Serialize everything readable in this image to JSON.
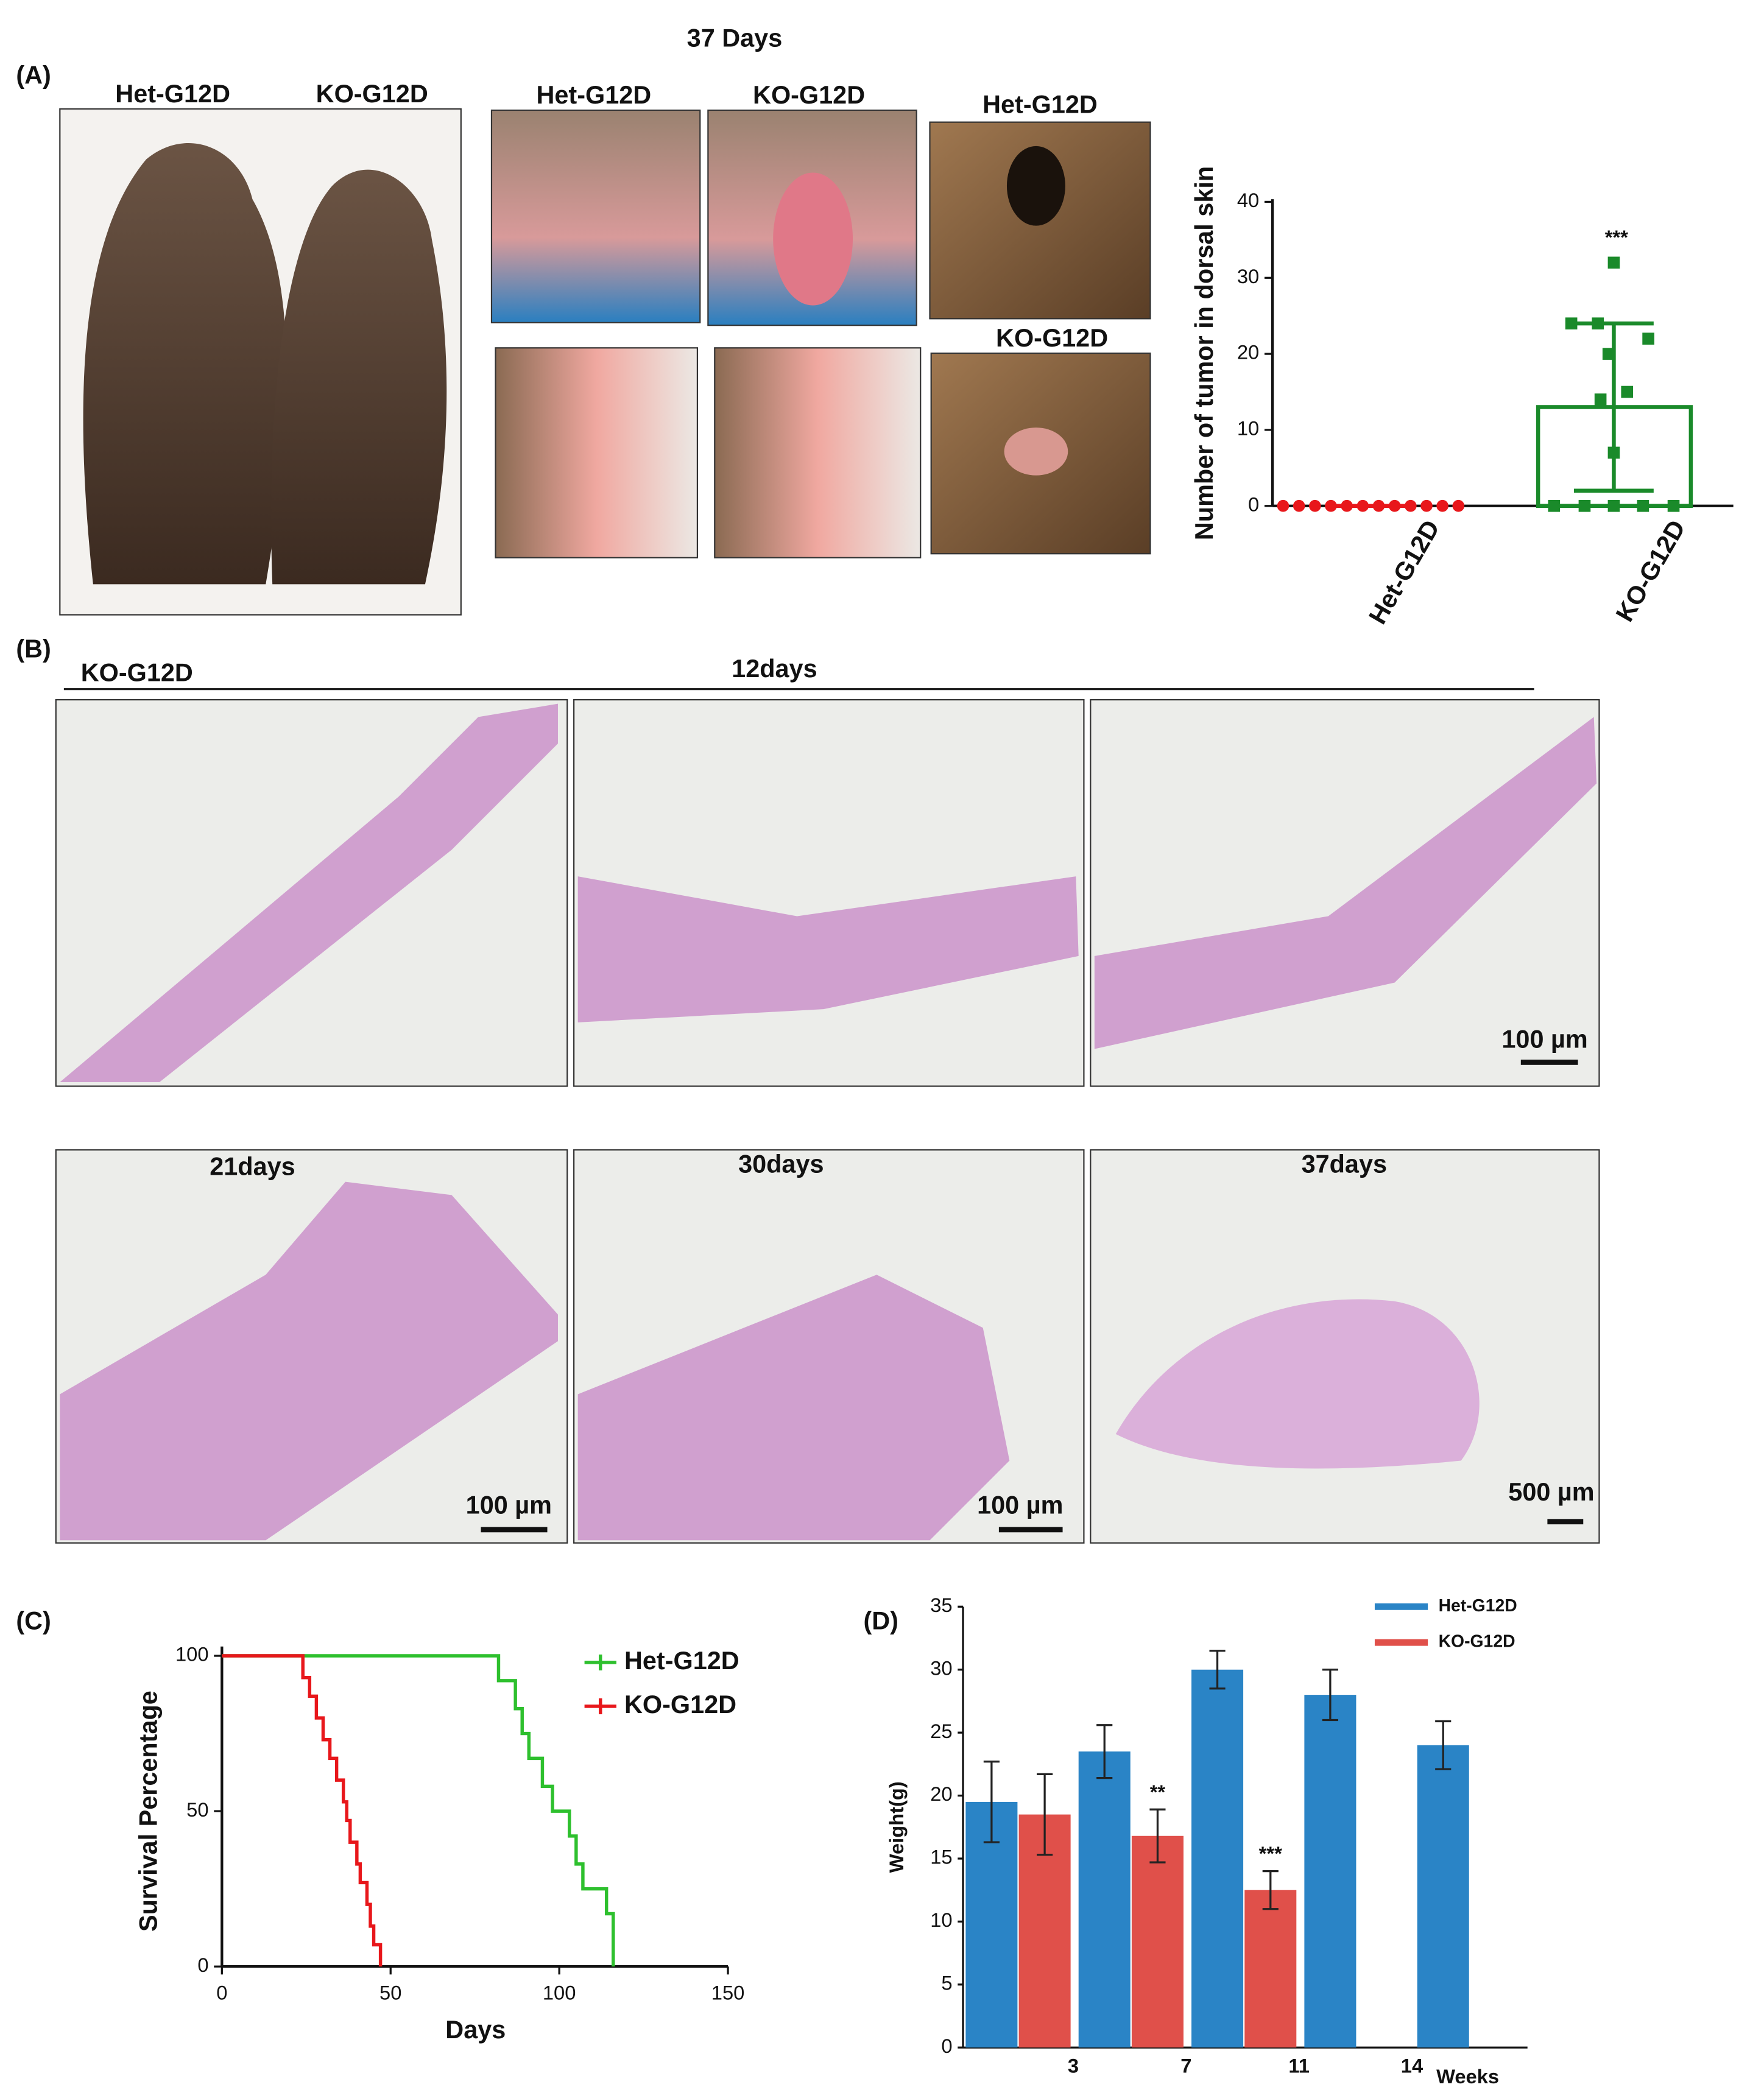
{
  "panel_labels": [
    "(A)",
    "(B)",
    "(C)",
    "(D)"
  ],
  "photos": {
    "title": "37 Days",
    "labels": [
      "Het-G12D",
      "KO-G12D",
      "Het-G12D",
      "KO-G12D",
      "Het-G12D",
      "KO-G12D"
    ]
  },
  "histology": {
    "group": "KO-G12D",
    "labels": [
      "12days",
      "21days",
      "30days",
      "37days"
    ],
    "scale_bars": [
      "100 µm",
      "100 µm",
      "100 µm",
      "500 µm"
    ]
  },
  "chart_data": [
    {
      "type": "bar_scatter",
      "y_label": "Number of tumor in dorsal skin",
      "categories": [
        "Het-G12D",
        "KO-G12D"
      ],
      "series": [
        {
          "name": "Het-G12D",
          "color": "#e8171b",
          "values": [
            0,
            0,
            0,
            0,
            0,
            0,
            0,
            0,
            0,
            0,
            0,
            0
          ]
        },
        {
          "name": "KO-G12D",
          "color": "#1a8a2a",
          "values": [
            32,
            24,
            24,
            22,
            20,
            15,
            14,
            7,
            0,
            0,
            0,
            0,
            0
          ]
        }
      ],
      "means": [
        0,
        13
      ],
      "errors": [
        0,
        11
      ],
      "annotation": "***",
      "ylim": [
        0,
        40
      ],
      "yticks": [
        0,
        10,
        20,
        30,
        40
      ]
    },
    {
      "type": "line",
      "x_label": "Days",
      "y_label": "Survival Percentage",
      "series": [
        {
          "name": "Het-G12D",
          "color": "#2ec02e",
          "x": [
            0,
            82,
            87,
            89,
            91,
            95,
            98,
            103,
            105,
            107,
            114,
            116
          ],
          "values": [
            100,
            92,
            83,
            75,
            67,
            58,
            50,
            42,
            33,
            25,
            17,
            0
          ]
        },
        {
          "name": "KO-G12D",
          "color": "#e8171b",
          "x": [
            0,
            24,
            26,
            28,
            30,
            32,
            34,
            36,
            37,
            38,
            40,
            41,
            43,
            44,
            45,
            47
          ],
          "values": [
            100,
            93,
            87,
            80,
            73,
            67,
            60,
            53,
            47,
            40,
            33,
            27,
            20,
            13,
            7,
            0
          ]
        }
      ],
      "xlim": [
        0,
        150
      ],
      "xticks": [
        0,
        50,
        100,
        150
      ],
      "ylim": [
        0,
        100
      ],
      "yticks": [
        0,
        50,
        100
      ]
    },
    {
      "type": "bar",
      "x_label": "Weeks",
      "y_label": "Weight(g)",
      "categories": [
        null,
        "3",
        "7",
        "11",
        "14"
      ],
      "series": [
        {
          "name": "Het-G12D",
          "color": "#2a84c6",
          "values": [
            19.5,
            23.5,
            30,
            28,
            24
          ],
          "errors": [
            3.2,
            2.1,
            1.5,
            2,
            1.9
          ]
        },
        {
          "name": "KO-G12D",
          "color": "#e0504a",
          "values": [
            18.5,
            16.8,
            12.5,
            null,
            null
          ],
          "errors": [
            3.2,
            2.1,
            1.5,
            null,
            null
          ]
        }
      ],
      "annotations": [
        "**",
        "***"
      ],
      "ylim": [
        0,
        35
      ],
      "yticks": [
        0,
        5,
        10,
        15,
        20,
        25,
        30,
        35
      ]
    }
  ]
}
